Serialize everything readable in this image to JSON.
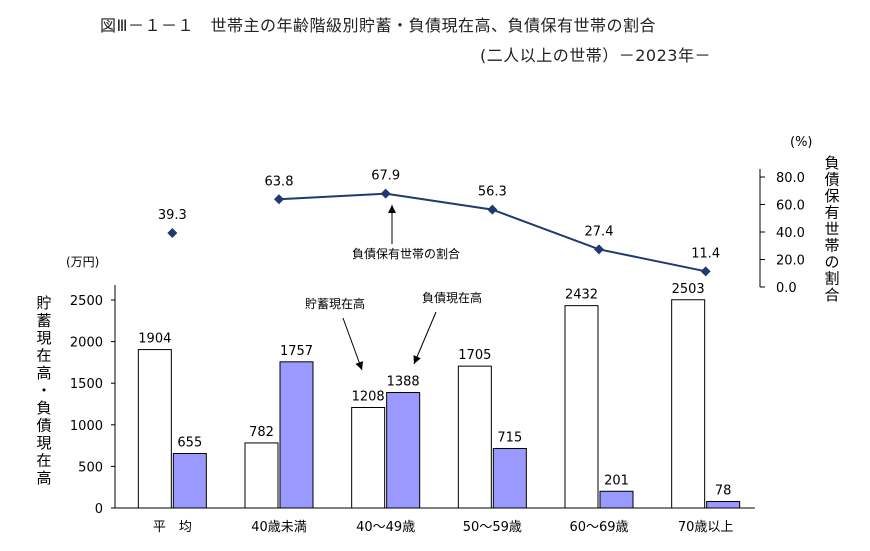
{
  "title": "図Ⅲ－１－１　世帯主の年齢階級別貯蓄・負債現在高、負債保有世帯の割合",
  "subtitle": "(二人以上の世帯）－2023年－",
  "colors": {
    "savings_fill": "#ffffff",
    "debt_fill": "#9999ff",
    "bar_stroke": "#000000",
    "line": "#1f3a6e"
  },
  "chart_data": {
    "type": "bar+line",
    "categories": [
      "平　均",
      "40歳未満",
      "40～49歳",
      "50～59歳",
      "60～69歳",
      "70歳以上"
    ],
    "series": [
      {
        "name": "貯蓄現在高",
        "values": [
          1904,
          782,
          1208,
          1705,
          2432,
          2503
        ]
      },
      {
        "name": "負債現在高",
        "values": [
          655,
          1757,
          1388,
          715,
          201,
          78
        ]
      },
      {
        "name": "負債保有世帯の割合",
        "values": [
          39.3,
          63.8,
          67.9,
          56.3,
          27.4,
          11.4
        ]
      }
    ],
    "left_axis": {
      "unit": "(万円)",
      "label": "貯蓄現在高・負債現在高",
      "ylim": [
        0,
        2500
      ],
      "ticks": [
        "0",
        "500",
        "1000",
        "1500",
        "2000",
        "2500"
      ]
    },
    "right_axis": {
      "unit": "(%)",
      "label": "負債保有世帯の割合",
      "ylim": [
        0,
        80
      ],
      "ticks": [
        "0.0",
        "20.0",
        "40.0",
        "60.0",
        "80.0"
      ]
    },
    "annotations": {
      "savings": "貯蓄現在高",
      "debt": "負債現在高",
      "ratio": "負債保有世帯の割合"
    }
  }
}
